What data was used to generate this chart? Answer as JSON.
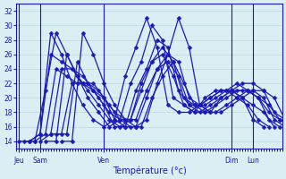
{
  "xlabel": "Température (°c)",
  "xlim": [
    0,
    100
  ],
  "ylim": [
    13,
    33
  ],
  "yticks": [
    14,
    16,
    18,
    20,
    22,
    24,
    26,
    28,
    30,
    32
  ],
  "xtick_positions": [
    1,
    9,
    33,
    81,
    89
  ],
  "xtick_labels": [
    "Jeu",
    "Sam",
    "Ven",
    "Dim",
    "Lun"
  ],
  "vline_positions": [
    1,
    9,
    33,
    81,
    89
  ],
  "bg_color": "#daeef3",
  "grid_color": "#b8d8dd",
  "line_color": "#1a1ab8",
  "series": [
    {
      "start": 1,
      "points": [
        14,
        14,
        15,
        29,
        26,
        22,
        19,
        17,
        16,
        17,
        23,
        27,
        31,
        27,
        19,
        18,
        18,
        19,
        20,
        21,
        21,
        20,
        17,
        16
      ]
    },
    {
      "start": 3,
      "points": [
        14,
        14,
        21,
        29,
        26,
        23,
        20,
        18,
        16,
        17,
        22,
        25,
        30,
        28,
        20,
        19,
        18,
        20,
        21,
        21,
        20,
        19,
        17,
        16
      ]
    },
    {
      "start": 5,
      "points": [
        14,
        15,
        26,
        25,
        24,
        23,
        21,
        19,
        16,
        16,
        21,
        24,
        28,
        27,
        21,
        19,
        19,
        20,
        21,
        21,
        20,
        19,
        18,
        16
      ]
    },
    {
      "start": 7,
      "points": [
        14,
        15,
        24,
        23,
        22,
        22,
        20,
        18,
        17,
        17,
        22,
        25,
        27,
        25,
        20,
        19,
        19,
        20,
        21,
        22,
        21,
        20,
        18,
        17
      ]
    },
    {
      "start": 9,
      "points": [
        14,
        15,
        24,
        24,
        22,
        22,
        20,
        17,
        16,
        16,
        20,
        24,
        26,
        25,
        20,
        19,
        18,
        20,
        21,
        21,
        21,
        20,
        17,
        16
      ]
    },
    {
      "start": 11,
      "points": [
        14,
        14,
        26,
        23,
        21,
        19,
        17,
        16,
        17,
        21,
        25,
        26,
        23,
        19,
        18,
        18,
        19,
        20,
        21,
        21,
        20,
        17,
        16
      ]
    },
    {
      "start": 13,
      "points": [
        15,
        15,
        22,
        22,
        21,
        20,
        18,
        17,
        17,
        21,
        24,
        25,
        23,
        19,
        18,
        19,
        20,
        21,
        22,
        22,
        21,
        18,
        17
      ]
    },
    {
      "start": 15,
      "points": [
        15,
        15,
        25,
        22,
        21,
        19,
        17,
        16,
        16,
        20,
        23,
        25,
        22,
        19,
        18,
        18,
        19,
        20,
        21,
        20,
        19,
        17,
        16
      ]
    },
    {
      "start": 17,
      "points": [
        14,
        14,
        29,
        26,
        22,
        19,
        17,
        16,
        17,
        22,
        26,
        31,
        27,
        19,
        18,
        18,
        19,
        20,
        21,
        21,
        20,
        17,
        16
      ]
    }
  ],
  "marker": "D",
  "markersize": 2.5,
  "linewidth": 0.9
}
